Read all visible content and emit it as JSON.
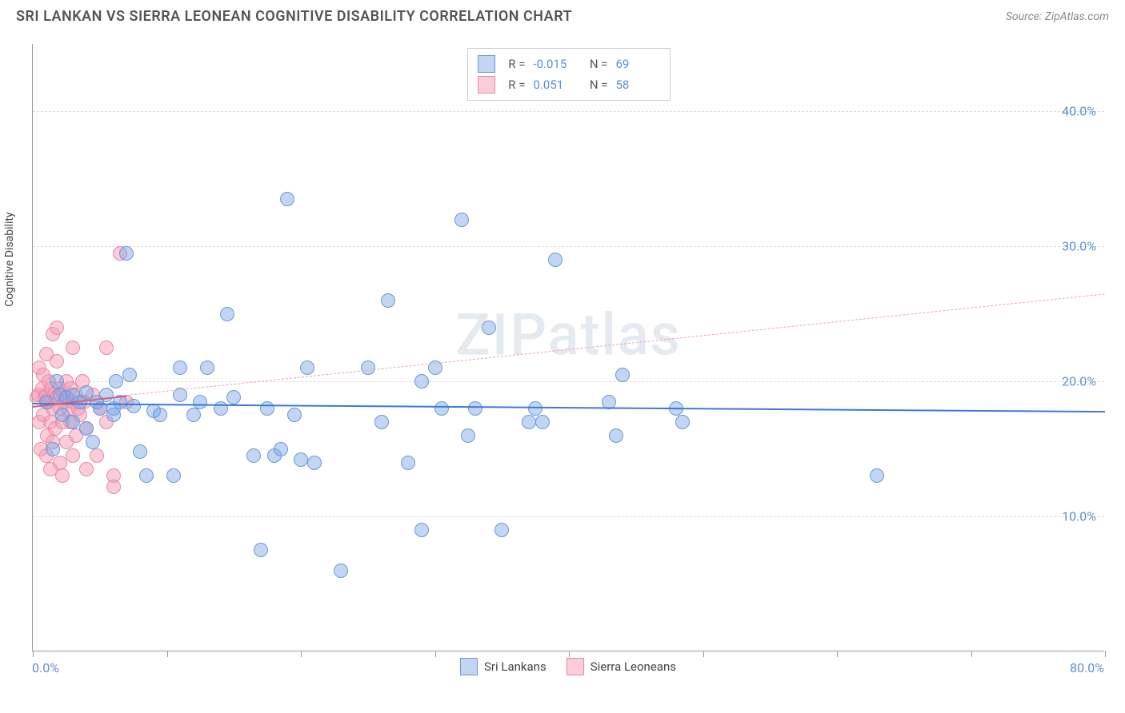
{
  "title": "SRI LANKAN VS SIERRA LEONEAN COGNITIVE DISABILITY CORRELATION CHART",
  "source": "Source: ZipAtlas.com",
  "watermark": "ZIPatlas",
  "y_axis_label": "Cognitive Disability",
  "chart": {
    "type": "scatter",
    "xlim": [
      0,
      80
    ],
    "ylim": [
      0,
      45
    ],
    "x_start_label": "0.0%",
    "x_end_label": "80.0%",
    "y_ticks": [
      {
        "value": 10,
        "label": "10.0%"
      },
      {
        "value": 20,
        "label": "20.0%"
      },
      {
        "value": 30,
        "label": "30.0%"
      },
      {
        "value": 40,
        "label": "40.0%"
      }
    ],
    "x_tick_positions": [
      0,
      10,
      20,
      30,
      40,
      50,
      60,
      70,
      80
    ],
    "background_color": "#ffffff",
    "grid_color": "#dddddd",
    "grid_dash": "4 4"
  },
  "series": [
    {
      "name": "Sri Lankans",
      "fill_color": "rgba(120, 165, 230, 0.45)",
      "stroke_color": "#6a98d8",
      "marker_radius": 9,
      "trend": {
        "x1": 0,
        "y1": 18.4,
        "x2": 80,
        "y2": 17.8,
        "color": "#3a7bd5",
        "width": 2.5,
        "dash": "none"
      },
      "points": [
        {
          "x": 1.0,
          "y": 18.5
        },
        {
          "x": 1.5,
          "y": 15.0
        },
        {
          "x": 1.8,
          "y": 20.0
        },
        {
          "x": 2.0,
          "y": 19.0
        },
        {
          "x": 2.2,
          "y": 17.5
        },
        {
          "x": 2.5,
          "y": 18.8
        },
        {
          "x": 3.0,
          "y": 17.0
        },
        {
          "x": 3.0,
          "y": 19.0
        },
        {
          "x": 3.5,
          "y": 18.5
        },
        {
          "x": 4.0,
          "y": 16.5
        },
        {
          "x": 4.0,
          "y": 19.2
        },
        {
          "x": 4.5,
          "y": 15.5
        },
        {
          "x": 4.8,
          "y": 18.5
        },
        {
          "x": 5.0,
          "y": 18.0
        },
        {
          "x": 5.5,
          "y": 19.0
        },
        {
          "x": 6.0,
          "y": 17.5
        },
        {
          "x": 6.0,
          "y": 18.0
        },
        {
          "x": 6.2,
          "y": 20.0
        },
        {
          "x": 6.5,
          "y": 18.5
        },
        {
          "x": 7.0,
          "y": 29.5
        },
        {
          "x": 7.2,
          "y": 20.5
        },
        {
          "x": 7.5,
          "y": 18.2
        },
        {
          "x": 8.0,
          "y": 14.8
        },
        {
          "x": 8.5,
          "y": 13.0
        },
        {
          "x": 9.0,
          "y": 17.8
        },
        {
          "x": 9.5,
          "y": 17.5
        },
        {
          "x": 10.5,
          "y": 13.0
        },
        {
          "x": 11.0,
          "y": 19.0
        },
        {
          "x": 11.0,
          "y": 21.0
        },
        {
          "x": 12.0,
          "y": 17.5
        },
        {
          "x": 12.5,
          "y": 18.5
        },
        {
          "x": 13.0,
          "y": 21.0
        },
        {
          "x": 14.0,
          "y": 18.0
        },
        {
          "x": 14.5,
          "y": 25.0
        },
        {
          "x": 15.0,
          "y": 18.8
        },
        {
          "x": 16.5,
          "y": 14.5
        },
        {
          "x": 17.0,
          "y": 7.5
        },
        {
          "x": 17.5,
          "y": 18.0
        },
        {
          "x": 18.0,
          "y": 14.5
        },
        {
          "x": 18.5,
          "y": 15.0
        },
        {
          "x": 19.0,
          "y": 33.5
        },
        {
          "x": 19.5,
          "y": 17.5
        },
        {
          "x": 20.0,
          "y": 14.2
        },
        {
          "x": 20.5,
          "y": 21.0
        },
        {
          "x": 21.0,
          "y": 14.0
        },
        {
          "x": 23.0,
          "y": 6.0
        },
        {
          "x": 25.0,
          "y": 21.0
        },
        {
          "x": 26.0,
          "y": 17.0
        },
        {
          "x": 26.5,
          "y": 26.0
        },
        {
          "x": 28.0,
          "y": 14.0
        },
        {
          "x": 29.0,
          "y": 9.0
        },
        {
          "x": 29.0,
          "y": 20.0
        },
        {
          "x": 30.0,
          "y": 21.0
        },
        {
          "x": 30.5,
          "y": 18.0
        },
        {
          "x": 32.0,
          "y": 32.0
        },
        {
          "x": 32.5,
          "y": 16.0
        },
        {
          "x": 33.0,
          "y": 18.0
        },
        {
          "x": 34.0,
          "y": 24.0
        },
        {
          "x": 35.0,
          "y": 9.0
        },
        {
          "x": 37.0,
          "y": 17.0
        },
        {
          "x": 37.5,
          "y": 18.0
        },
        {
          "x": 38.0,
          "y": 17.0
        },
        {
          "x": 39.0,
          "y": 29.0
        },
        {
          "x": 43.0,
          "y": 18.5
        },
        {
          "x": 43.5,
          "y": 16.0
        },
        {
          "x": 44.0,
          "y": 20.5
        },
        {
          "x": 48.0,
          "y": 18.0
        },
        {
          "x": 63.0,
          "y": 13.0
        },
        {
          "x": 48.5,
          "y": 17.0
        }
      ]
    },
    {
      "name": "Sierra Leoneans",
      "fill_color": "rgba(245, 155, 180, 0.5)",
      "stroke_color": "#e889a8",
      "marker_radius": 9,
      "trend": {
        "x1": 0,
        "y1": 18.2,
        "x2": 7,
        "y2": 19.0,
        "color": "#d65c85",
        "width": 2,
        "dash": "none"
      },
      "trend_ext": {
        "x1": 7,
        "y1": 19.0,
        "x2": 80,
        "y2": 26.5,
        "color": "#e8a5b8",
        "width": 1.5,
        "dash": "6 5"
      },
      "points": [
        {
          "x": 0.3,
          "y": 18.8
        },
        {
          "x": 0.4,
          "y": 19.0
        },
        {
          "x": 0.5,
          "y": 17.0
        },
        {
          "x": 0.5,
          "y": 21.0
        },
        {
          "x": 0.6,
          "y": 15.0
        },
        {
          "x": 0.7,
          "y": 19.5
        },
        {
          "x": 0.8,
          "y": 17.5
        },
        {
          "x": 0.8,
          "y": 20.5
        },
        {
          "x": 0.9,
          "y": 18.8
        },
        {
          "x": 1.0,
          "y": 14.5
        },
        {
          "x": 1.0,
          "y": 19.0
        },
        {
          "x": 1.0,
          "y": 22.0
        },
        {
          "x": 1.1,
          "y": 16.0
        },
        {
          "x": 1.2,
          "y": 18.5
        },
        {
          "x": 1.2,
          "y": 20.0
        },
        {
          "x": 1.3,
          "y": 13.5
        },
        {
          "x": 1.3,
          "y": 17.0
        },
        {
          "x": 1.4,
          "y": 19.5
        },
        {
          "x": 1.5,
          "y": 15.5
        },
        {
          "x": 1.5,
          "y": 18.0
        },
        {
          "x": 1.5,
          "y": 23.5
        },
        {
          "x": 1.6,
          "y": 19.0
        },
        {
          "x": 1.7,
          "y": 16.5
        },
        {
          "x": 1.8,
          "y": 18.8
        },
        {
          "x": 1.8,
          "y": 21.5
        },
        {
          "x": 1.8,
          "y": 24.0
        },
        {
          "x": 2.0,
          "y": 14.0
        },
        {
          "x": 2.0,
          "y": 18.0
        },
        {
          "x": 2.0,
          "y": 19.5
        },
        {
          "x": 2.2,
          "y": 13.0
        },
        {
          "x": 2.2,
          "y": 17.0
        },
        {
          "x": 2.3,
          "y": 19.0
        },
        {
          "x": 2.4,
          "y": 18.5
        },
        {
          "x": 2.5,
          "y": 15.5
        },
        {
          "x": 2.5,
          "y": 20.0
        },
        {
          "x": 2.6,
          "y": 18.0
        },
        {
          "x": 2.8,
          "y": 17.0
        },
        {
          "x": 2.8,
          "y": 19.5
        },
        {
          "x": 3.0,
          "y": 14.5
        },
        {
          "x": 3.0,
          "y": 18.5
        },
        {
          "x": 3.0,
          "y": 22.5
        },
        {
          "x": 3.2,
          "y": 16.0
        },
        {
          "x": 3.2,
          "y": 19.0
        },
        {
          "x": 3.4,
          "y": 18.0
        },
        {
          "x": 3.5,
          "y": 17.5
        },
        {
          "x": 3.7,
          "y": 20.0
        },
        {
          "x": 3.8,
          "y": 18.5
        },
        {
          "x": 4.0,
          "y": 16.5
        },
        {
          "x": 4.0,
          "y": 13.5
        },
        {
          "x": 4.8,
          "y": 14.5
        },
        {
          "x": 5.0,
          "y": 18.0
        },
        {
          "x": 5.5,
          "y": 17.0
        },
        {
          "x": 5.5,
          "y": 22.5
        },
        {
          "x": 6.0,
          "y": 13.0
        },
        {
          "x": 6.0,
          "y": 12.2
        },
        {
          "x": 6.5,
          "y": 29.5
        },
        {
          "x": 7.0,
          "y": 18.5
        },
        {
          "x": 4.5,
          "y": 19.0
        }
      ]
    }
  ],
  "stats": [
    {
      "swatch_fill": "rgba(120,165,230,0.45)",
      "swatch_border": "#6a98d8",
      "r": "-0.015",
      "n": "69"
    },
    {
      "swatch_fill": "rgba(245,155,180,0.5)",
      "swatch_border": "#e889a8",
      "r": "0.051",
      "n": "58"
    }
  ],
  "stat_labels": {
    "r": "R =",
    "n": "N ="
  },
  "legend": [
    {
      "label": "Sri Lankans",
      "swatch_fill": "rgba(120,165,230,0.45)",
      "swatch_border": "#6a98d8"
    },
    {
      "label": "Sierra Leoneans",
      "swatch_fill": "rgba(245,155,180,0.5)",
      "swatch_border": "#e889a8"
    }
  ]
}
